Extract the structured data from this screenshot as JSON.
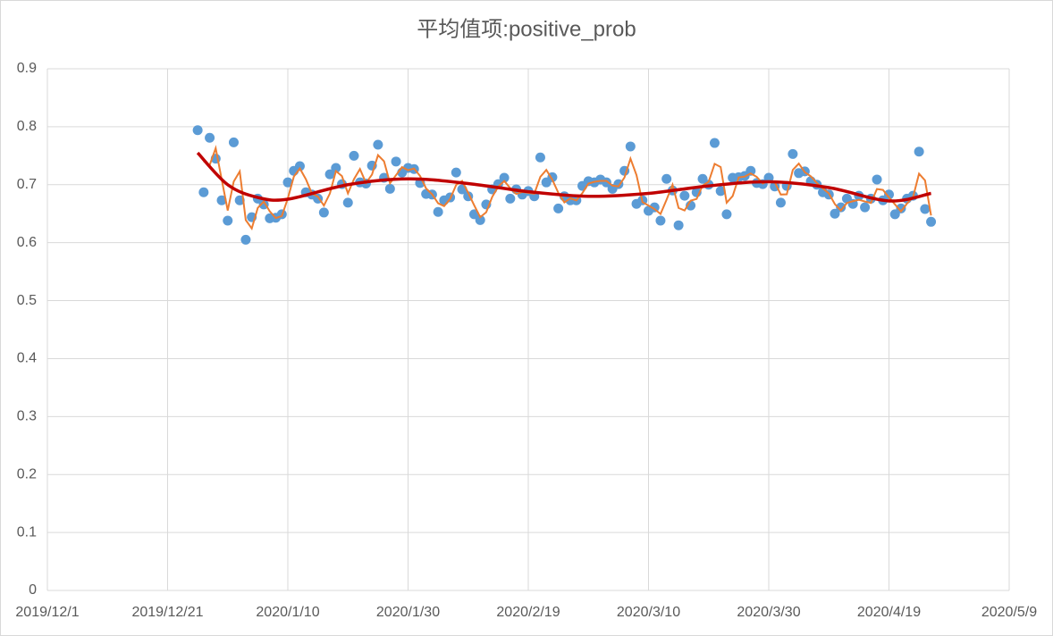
{
  "chart_data": {
    "type": "scatter",
    "title": "平均值项:positive_prob",
    "xlim": [
      "2019/12/1",
      "2020/5/9"
    ],
    "xticks": [
      "2019/12/1",
      "2019/12/21",
      "2020/1/10",
      "2020/1/30",
      "2020/2/19",
      "2020/3/10",
      "2020/3/30",
      "2020/4/19",
      "2020/5/9"
    ],
    "ylim": [
      0,
      0.9
    ],
    "yticks": [
      0,
      0.1,
      0.2,
      0.3,
      0.4,
      0.5,
      0.6,
      0.7,
      0.8,
      0.9
    ],
    "grid": true,
    "x": [
      "2019/12/26",
      "2019/12/27",
      "2019/12/28",
      "2019/12/29",
      "2019/12/30",
      "2019/12/31",
      "2020/1/1",
      "2020/1/2",
      "2020/1/3",
      "2020/1/4",
      "2020/1/5",
      "2020/1/6",
      "2020/1/7",
      "2020/1/8",
      "2020/1/9",
      "2020/1/10",
      "2020/1/11",
      "2020/1/12",
      "2020/1/13",
      "2020/1/14",
      "2020/1/15",
      "2020/1/16",
      "2020/1/17",
      "2020/1/18",
      "2020/1/19",
      "2020/1/20",
      "2020/1/21",
      "2020/1/22",
      "2020/1/23",
      "2020/1/24",
      "2020/1/25",
      "2020/1/26",
      "2020/1/27",
      "2020/1/28",
      "2020/1/29",
      "2020/1/30",
      "2020/1/31",
      "2020/2/1",
      "2020/2/2",
      "2020/2/3",
      "2020/2/4",
      "2020/2/5",
      "2020/2/6",
      "2020/2/7",
      "2020/2/8",
      "2020/2/9",
      "2020/2/10",
      "2020/2/11",
      "2020/2/12",
      "2020/2/13",
      "2020/2/14",
      "2020/2/15",
      "2020/2/16",
      "2020/2/17",
      "2020/2/18",
      "2020/2/19",
      "2020/2/20",
      "2020/2/21",
      "2020/2/22",
      "2020/2/23",
      "2020/2/24",
      "2020/2/25",
      "2020/2/26",
      "2020/2/27",
      "2020/2/28",
      "2020/2/29",
      "2020/3/1",
      "2020/3/2",
      "2020/3/3",
      "2020/3/4",
      "2020/3/5",
      "2020/3/6",
      "2020/3/7",
      "2020/3/8",
      "2020/3/9",
      "2020/3/10",
      "2020/3/11",
      "2020/3/12",
      "2020/3/13",
      "2020/3/14",
      "2020/3/15",
      "2020/3/16",
      "2020/3/17",
      "2020/3/18",
      "2020/3/19",
      "2020/3/20",
      "2020/3/21",
      "2020/3/22",
      "2020/3/23",
      "2020/3/24",
      "2020/3/25",
      "2020/3/26",
      "2020/3/27",
      "2020/3/28",
      "2020/3/29",
      "2020/3/30",
      "2020/3/31",
      "2020/4/1",
      "2020/4/2",
      "2020/4/3",
      "2020/4/4",
      "2020/4/5",
      "2020/4/6",
      "2020/4/7",
      "2020/4/8",
      "2020/4/9",
      "2020/4/10",
      "2020/4/11",
      "2020/4/12",
      "2020/4/13",
      "2020/4/14",
      "2020/4/15",
      "2020/4/16",
      "2020/4/17",
      "2020/4/18",
      "2020/4/19",
      "2020/4/20",
      "2020/4/21",
      "2020/4/22",
      "2020/4/23",
      "2020/4/24",
      "2020/4/25",
      "2020/4/26"
    ],
    "series": [
      {
        "color": "#5b9bd5",
        "values": [
          0.794,
          0.687,
          0.781,
          0.745,
          0.673,
          0.638,
          0.773,
          0.673,
          0.605,
          0.644,
          0.676,
          0.666,
          0.642,
          0.643,
          0.649,
          0.704,
          0.724,
          0.732,
          0.687,
          0.683,
          0.676,
          0.652,
          0.718,
          0.729,
          0.701,
          0.669,
          0.75,
          0.704,
          0.702,
          0.733,
          0.769,
          0.712,
          0.693,
          0.74,
          0.721,
          0.729,
          0.727,
          0.703,
          0.684,
          0.683,
          0.653,
          0.673,
          0.678,
          0.721,
          0.692,
          0.68,
          0.649,
          0.639,
          0.666,
          0.692,
          0.701,
          0.712,
          0.676,
          0.692,
          0.683,
          0.689,
          0.68,
          0.747,
          0.704,
          0.713,
          0.659,
          0.68,
          0.673,
          0.673,
          0.698,
          0.706,
          0.704,
          0.709,
          0.704,
          0.693,
          0.701,
          0.724,
          0.766,
          0.667,
          0.673,
          0.655,
          0.661,
          0.638,
          0.71,
          0.69,
          0.63,
          0.681,
          0.664,
          0.687,
          0.71,
          0.7,
          0.772,
          0.689,
          0.649,
          0.712,
          0.713,
          0.715,
          0.724,
          0.703,
          0.701,
          0.712,
          0.697,
          0.669,
          0.698,
          0.753,
          0.72,
          0.723,
          0.706,
          0.7,
          0.687,
          0.683,
          0.65,
          0.661,
          0.676,
          0.667,
          0.681,
          0.661,
          0.676,
          0.709,
          0.673,
          0.683,
          0.649,
          0.659,
          0.676,
          0.681,
          0.757,
          0.658,
          0.636
        ]
      }
    ],
    "moving_average": {
      "color": "#ed7d31",
      "period": 2
    },
    "trendline": {
      "color": "#c00000",
      "x": [
        "2019/12/26",
        "2019/12/31",
        "2020/1/5",
        "2020/1/10",
        "2020/1/20",
        "2020/1/30",
        "2020/2/9",
        "2020/2/19",
        "2020/2/29",
        "2020/3/10",
        "2020/3/20",
        "2020/3/30",
        "2020/4/9",
        "2020/4/19",
        "2020/4/26"
      ],
      "values": [
        0.755,
        0.7,
        0.678,
        0.675,
        0.7,
        0.71,
        0.702,
        0.688,
        0.68,
        0.685,
        0.698,
        0.705,
        0.695,
        0.672,
        0.685
      ]
    }
  }
}
